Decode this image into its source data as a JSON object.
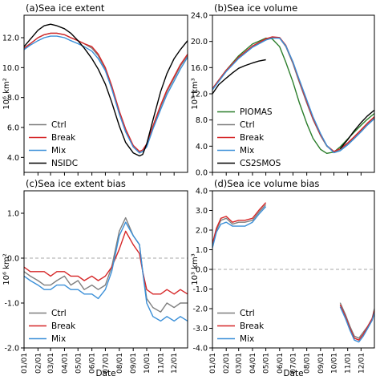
{
  "figure": {
    "xlabel": "Date",
    "x_ticks": [
      "01/01",
      "02/01",
      "03/01",
      "04/01",
      "05/01",
      "06/01",
      "07/01",
      "08/01",
      "09/01",
      "10/01",
      "11/01",
      "12/01"
    ]
  },
  "chart_data": [
    {
      "id": "a",
      "type": "line",
      "title": "(a)Sea ice extent",
      "ylabel": "10⁶ km²",
      "ylim": [
        3.0,
        13.5
      ],
      "yticks": [
        "4.0",
        "6.0",
        "8.0",
        "10.0",
        "12.0"
      ],
      "ytick_values": [
        4,
        6,
        8,
        10,
        12
      ],
      "xlabel": "Date",
      "legend_position": "lower-left",
      "series": [
        {
          "name": "Ctrl",
          "color": "#7f7f7f",
          "x": [
            1,
            15,
            32,
            46,
            60,
            74,
            91,
            105,
            121,
            135,
            152,
            166,
            182,
            196,
            213,
            227,
            244,
            258,
            265,
            274,
            288,
            305,
            319,
            335,
            349,
            365
          ],
          "y": [
            11.3,
            11.6,
            12.0,
            12.2,
            12.3,
            12.3,
            12.2,
            12.0,
            11.8,
            11.6,
            11.3,
            10.8,
            9.9,
            8.7,
            7.0,
            5.8,
            4.7,
            4.3,
            4.4,
            4.8,
            6.0,
            7.4,
            8.4,
            9.3,
            10.1,
            10.8
          ]
        },
        {
          "name": "Break",
          "color": "#d62728",
          "x": [
            1,
            15,
            32,
            46,
            60,
            74,
            91,
            105,
            121,
            135,
            152,
            166,
            182,
            196,
            213,
            227,
            244,
            258,
            265,
            274,
            288,
            305,
            319,
            335,
            349,
            365
          ],
          "y": [
            11.3,
            11.6,
            12.0,
            12.2,
            12.3,
            12.3,
            12.2,
            12.0,
            11.8,
            11.6,
            11.4,
            10.9,
            10.0,
            8.8,
            7.1,
            5.9,
            4.8,
            4.4,
            4.5,
            4.9,
            6.1,
            7.5,
            8.5,
            9.4,
            10.2,
            10.9
          ]
        },
        {
          "name": "Mix",
          "color": "#3a8fd8",
          "x": [
            1,
            15,
            32,
            46,
            60,
            74,
            91,
            105,
            121,
            135,
            152,
            166,
            182,
            196,
            213,
            227,
            244,
            258,
            265,
            274,
            288,
            305,
            319,
            335,
            349,
            365
          ],
          "y": [
            11.2,
            11.5,
            11.8,
            12.0,
            12.1,
            12.1,
            12.0,
            11.8,
            11.6,
            11.4,
            11.1,
            10.6,
            9.8,
            8.6,
            6.9,
            5.7,
            4.7,
            4.3,
            4.4,
            4.7,
            5.9,
            7.2,
            8.2,
            9.1,
            9.9,
            10.7
          ]
        },
        {
          "name": "NSIDC",
          "color": "#000000",
          "x": [
            1,
            15,
            32,
            46,
            60,
            74,
            91,
            105,
            121,
            135,
            152,
            166,
            182,
            196,
            213,
            227,
            244,
            258,
            265,
            274,
            288,
            305,
            319,
            335,
            349,
            365
          ],
          "y": [
            11.4,
            11.9,
            12.5,
            12.8,
            12.9,
            12.8,
            12.6,
            12.3,
            11.8,
            11.3,
            10.6,
            9.9,
            8.9,
            7.7,
            6.1,
            5.0,
            4.3,
            4.1,
            4.2,
            4.9,
            6.5,
            8.4,
            9.6,
            10.6,
            11.2,
            11.8
          ]
        }
      ]
    },
    {
      "id": "b",
      "type": "line",
      "title": "(b)Sea ice volume",
      "ylabel": "10³ km³",
      "ylim": [
        0,
        24.0
      ],
      "yticks": [
        "0.0",
        "4.0",
        "8.0",
        "12.0",
        "16.0",
        "20.0",
        "24.0"
      ],
      "ytick_values": [
        0,
        4,
        8,
        12,
        16,
        20,
        24
      ],
      "xlabel": "Date",
      "legend_position": "lower-left",
      "series": [
        {
          "name": "PIOMAS",
          "color": "#2a7d2a",
          "x": [
            1,
            32,
            60,
            91,
            121,
            135,
            152,
            166,
            182,
            196,
            213,
            227,
            244,
            258,
            274,
            288,
            305,
            319,
            335,
            349,
            365
          ],
          "y": [
            12.8,
            15.6,
            17.8,
            19.6,
            20.5,
            20.4,
            19.2,
            16.8,
            13.8,
            10.7,
            7.5,
            5.2,
            3.5,
            2.9,
            3.1,
            3.9,
            5.1,
            6.1,
            7.2,
            8.1,
            9.0
          ]
        },
        {
          "name": "Ctrl",
          "color": "#7f7f7f",
          "x": [
            1,
            32,
            60,
            91,
            121,
            135,
            152,
            166,
            182,
            196,
            213,
            227,
            244,
            258,
            274,
            288,
            305,
            319,
            335,
            349,
            365
          ],
          "y": [
            12.7,
            15.5,
            17.5,
            19.2,
            20.3,
            20.6,
            20.5,
            19.2,
            16.6,
            13.8,
            10.6,
            8.1,
            5.6,
            4.0,
            3.1,
            3.5,
            4.4,
            5.3,
            6.4,
            7.4,
            8.4
          ]
        },
        {
          "name": "Break",
          "color": "#d62728",
          "x": [
            1,
            32,
            60,
            91,
            121,
            135,
            152,
            166,
            182,
            196,
            213,
            227,
            244,
            258,
            274,
            288,
            305,
            319,
            335,
            349,
            365
          ],
          "y": [
            12.8,
            15.6,
            17.6,
            19.3,
            20.4,
            20.7,
            20.6,
            19.4,
            16.8,
            14.0,
            10.8,
            8.2,
            5.7,
            4.1,
            3.2,
            3.6,
            4.5,
            5.4,
            6.5,
            7.5,
            8.5
          ]
        },
        {
          "name": "Mix",
          "color": "#3a8fd8",
          "x": [
            1,
            32,
            60,
            91,
            121,
            135,
            152,
            166,
            182,
            196,
            213,
            227,
            244,
            258,
            274,
            288,
            305,
            319,
            335,
            349,
            365
          ],
          "y": [
            12.6,
            15.4,
            17.4,
            19.1,
            20.2,
            20.5,
            20.5,
            19.3,
            16.9,
            14.2,
            11.1,
            8.5,
            5.9,
            4.1,
            3.0,
            3.3,
            4.2,
            5.1,
            6.2,
            7.2,
            8.2
          ]
        },
        {
          "name": "CS2SMOS",
          "color": "#000000",
          "x": [
            1,
            15,
            32,
            46,
            60,
            74,
            91,
            105,
            121,
            288,
            305,
            319,
            335,
            349,
            365
          ],
          "y": [
            12.0,
            13.4,
            14.4,
            15.2,
            15.9,
            16.3,
            16.7,
            17.0,
            17.2,
            3.6,
            5.0,
            6.3,
            7.6,
            8.6,
            9.5
          ]
        }
      ]
    },
    {
      "id": "c",
      "type": "line",
      "title": "(c)Sea ice extent bias",
      "ylabel": "10⁶ km²",
      "ylim": [
        -2.0,
        1.5
      ],
      "yticks": [
        "-2.0",
        "-1.0",
        "0.0",
        "1.0"
      ],
      "ytick_values": [
        -2,
        -1,
        0,
        1
      ],
      "xlabel": "Date",
      "zero_line": true,
      "legend_position": "lower-left",
      "series": [
        {
          "name": "Ctrl",
          "color": "#7f7f7f",
          "x": [
            1,
            15,
            32,
            46,
            60,
            74,
            91,
            105,
            121,
            135,
            152,
            166,
            182,
            196,
            213,
            227,
            244,
            258,
            265,
            274,
            288,
            305,
            319,
            335,
            349,
            365
          ],
          "y": [
            -0.3,
            -0.4,
            -0.5,
            -0.6,
            -0.6,
            -0.5,
            -0.4,
            -0.6,
            -0.5,
            -0.7,
            -0.6,
            -0.7,
            -0.6,
            -0.2,
            0.6,
            0.9,
            0.5,
            0.3,
            -0.3,
            -0.9,
            -1.1,
            -1.2,
            -1.0,
            -1.1,
            -1.0,
            -1.0
          ]
        },
        {
          "name": "Break",
          "color": "#d62728",
          "x": [
            1,
            15,
            32,
            46,
            60,
            74,
            91,
            105,
            121,
            135,
            152,
            166,
            182,
            196,
            213,
            227,
            244,
            258,
            265,
            274,
            288,
            305,
            319,
            335,
            349,
            365
          ],
          "y": [
            -0.2,
            -0.3,
            -0.3,
            -0.3,
            -0.4,
            -0.3,
            -0.3,
            -0.4,
            -0.4,
            -0.5,
            -0.4,
            -0.5,
            -0.4,
            -0.2,
            0.2,
            0.6,
            0.3,
            0.1,
            -0.3,
            -0.7,
            -0.8,
            -0.8,
            -0.7,
            -0.8,
            -0.7,
            -0.8
          ]
        },
        {
          "name": "Mix",
          "color": "#3a8fd8",
          "x": [
            1,
            15,
            32,
            46,
            60,
            74,
            91,
            105,
            121,
            135,
            152,
            166,
            182,
            196,
            213,
            227,
            244,
            258,
            265,
            274,
            288,
            305,
            319,
            335,
            349,
            365
          ],
          "y": [
            -0.4,
            -0.5,
            -0.6,
            -0.7,
            -0.7,
            -0.6,
            -0.6,
            -0.7,
            -0.7,
            -0.8,
            -0.8,
            -0.9,
            -0.7,
            -0.3,
            0.5,
            0.8,
            0.5,
            0.3,
            -0.3,
            -1.0,
            -1.3,
            -1.4,
            -1.3,
            -1.4,
            -1.3,
            -1.4
          ]
        }
      ]
    },
    {
      "id": "d",
      "type": "line",
      "title": "(d)Sea ice volume bias",
      "ylabel": "10³ km³",
      "ylim": [
        -4.0,
        4.0
      ],
      "yticks": [
        "-4.0",
        "-3.0",
        "-2.0",
        "-1.0",
        "0.0",
        "1.0",
        "2.0",
        "3.0",
        "4.0"
      ],
      "ytick_values": [
        -4,
        -3,
        -2,
        -1,
        0,
        1,
        2,
        3,
        4
      ],
      "xlabel": "Date",
      "zero_line": true,
      "legend_position": "lower-left",
      "series": [
        {
          "name": "Ctrl",
          "color": "#7f7f7f",
          "segments": [
            {
              "x": [
                1,
                10,
                20,
                32,
                46,
                60,
                74,
                91,
                105,
                121
              ],
              "y": [
                1.2,
                2.0,
                2.5,
                2.6,
                2.3,
                2.4,
                2.4,
                2.5,
                2.9,
                3.3
              ]
            },
            {
              "x": [
                288,
                300,
                310,
                320,
                330,
                340,
                350,
                360,
                365
              ],
              "y": [
                -1.7,
                -2.3,
                -2.9,
                -3.4,
                -3.5,
                -3.2,
                -2.9,
                -2.5,
                -2.0
              ]
            }
          ]
        },
        {
          "name": "Break",
          "color": "#d62728",
          "segments": [
            {
              "x": [
                1,
                10,
                20,
                32,
                46,
                60,
                74,
                91,
                105,
                121
              ],
              "y": [
                1.3,
                2.1,
                2.6,
                2.7,
                2.4,
                2.5,
                2.5,
                2.6,
                3.0,
                3.4
              ]
            },
            {
              "x": [
                288,
                300,
                310,
                320,
                330,
                340,
                350,
                360,
                365
              ],
              "y": [
                -1.8,
                -2.4,
                -3.0,
                -3.5,
                -3.6,
                -3.3,
                -2.9,
                -2.5,
                -2.1
              ]
            }
          ]
        },
        {
          "name": "Mix",
          "color": "#3a8fd8",
          "segments": [
            {
              "x": [
                1,
                10,
                20,
                32,
                46,
                60,
                74,
                91,
                105,
                121
              ],
              "y": [
                1.1,
                1.9,
                2.3,
                2.4,
                2.2,
                2.2,
                2.2,
                2.4,
                2.8,
                3.2
              ]
            },
            {
              "x": [
                288,
                300,
                310,
                320,
                330,
                340,
                350,
                360,
                365
              ],
              "y": [
                -1.9,
                -2.5,
                -3.1,
                -3.6,
                -3.7,
                -3.4,
                -3.0,
                -2.6,
                -2.2
              ]
            }
          ]
        }
      ]
    }
  ]
}
